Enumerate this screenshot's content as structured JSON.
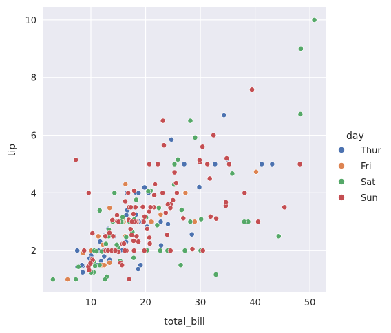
{
  "chart_data": {
    "type": "scatter",
    "xlabel": "total_bill",
    "ylabel": "tip",
    "xlim": [
      1.2,
      53.0
    ],
    "ylim": [
      0.55,
      10.45
    ],
    "xticks": [
      10,
      20,
      30,
      40,
      50
    ],
    "yticks": [
      2,
      4,
      6,
      8,
      10
    ],
    "grid": true,
    "legend": {
      "title": "day",
      "position": "right"
    },
    "series": [
      {
        "name": "Thur",
        "color": "#4c72b0",
        "points": [
          [
            27.2,
            4.0
          ],
          [
            22.76,
            3.0
          ],
          [
            17.29,
            2.71
          ],
          [
            19.44,
            3.0
          ],
          [
            16.66,
            3.4
          ],
          [
            10.07,
            1.83
          ],
          [
            32.68,
            5.0
          ],
          [
            15.98,
            2.03
          ],
          [
            34.83,
            5.17
          ],
          [
            13.03,
            2.0
          ],
          [
            18.28,
            4.0
          ],
          [
            24.71,
            5.85
          ],
          [
            21.16,
            3.0
          ],
          [
            28.97,
            3.0
          ],
          [
            22.49,
            3.5
          ],
          [
            5.75,
            1.0
          ],
          [
            16.32,
            4.3
          ],
          [
            22.75,
            3.25
          ],
          [
            40.17,
            4.73
          ],
          [
            27.28,
            4.0
          ],
          [
            12.03,
            1.5
          ],
          [
            21.01,
            3.0
          ],
          [
            12.46,
            1.5
          ],
          [
            11.35,
            2.5
          ],
          [
            15.38,
            3.0
          ],
          [
            44.3,
            2.5
          ],
          [
            22.42,
            3.48
          ],
          [
            20.92,
            4.08
          ],
          [
            15.36,
            1.64
          ],
          [
            20.49,
            4.06
          ],
          [
            25.21,
            4.29
          ],
          [
            18.24,
            3.76
          ],
          [
            14.31,
            4.0
          ],
          [
            14.0,
            3.0
          ],
          [
            7.25,
            1.0
          ],
          [
            38.07,
            4.0
          ],
          [
            23.95,
            2.55
          ],
          [
            25.71,
            4.0
          ],
          [
            17.31,
            3.5
          ],
          [
            29.93,
            5.07
          ],
          [
            10.65,
            1.5
          ],
          [
            12.43,
            1.8
          ],
          [
            24.08,
            2.92
          ],
          [
            11.69,
            2.31
          ],
          [
            13.42,
            1.68
          ],
          [
            14.26,
            2.5
          ],
          [
            15.95,
            2.0
          ],
          [
            12.48,
            2.52
          ],
          [
            29.8,
            4.2
          ],
          [
            8.52,
            1.48
          ],
          [
            14.52,
            2.0
          ],
          [
            11.38,
            2.0
          ],
          [
            22.82,
            2.18
          ],
          [
            19.08,
            1.5
          ],
          [
            20.27,
            2.83
          ],
          [
            11.17,
            1.5
          ],
          [
            12.26,
            2.0
          ],
          [
            18.26,
            3.25
          ],
          [
            8.51,
            1.25
          ],
          [
            10.33,
            2.0
          ],
          [
            14.15,
            2.0
          ],
          [
            16.0,
            2.0
          ],
          [
            13.16,
            2.75
          ],
          [
            17.47,
            3.5
          ],
          [
            34.3,
            6.7
          ],
          [
            41.19,
            5.0
          ],
          [
            27.05,
            5.0
          ],
          [
            16.43,
            2.3
          ],
          [
            8.35,
            1.5
          ],
          [
            18.64,
            1.36
          ],
          [
            11.87,
            1.63
          ],
          [
            9.78,
            1.73
          ],
          [
            7.51,
            2.0
          ],
          [
            19.81,
            4.19
          ],
          [
            28.44,
            2.56
          ],
          [
            15.48,
            2.02
          ],
          [
            16.58,
            4.0
          ],
          [
            7.56,
            1.44
          ],
          [
            10.34,
            2.0
          ],
          [
            43.11,
            5.0
          ],
          [
            13.0,
            2.0
          ],
          [
            13.51,
            2.0
          ],
          [
            18.71,
            4.0
          ],
          [
            12.74,
            2.01
          ],
          [
            13.0,
            2.0
          ],
          [
            16.4,
            2.5
          ],
          [
            20.53,
            4.0
          ],
          [
            16.47,
            3.23
          ],
          [
            18.78,
            3.0
          ],
          [
            10.09,
            2.0
          ]
        ]
      },
      {
        "name": "Fri",
        "color": "#dd8452",
        "points": [
          [
            28.97,
            3.0
          ],
          [
            22.49,
            3.5
          ],
          [
            5.75,
            1.0
          ],
          [
            16.32,
            4.3
          ],
          [
            22.75,
            3.25
          ],
          [
            40.17,
            4.73
          ],
          [
            27.28,
            4.0
          ],
          [
            12.03,
            1.5
          ],
          [
            21.01,
            3.0
          ],
          [
            12.46,
            1.5
          ],
          [
            11.35,
            2.5
          ],
          [
            15.38,
            3.0
          ],
          [
            12.16,
            2.2
          ],
          [
            13.42,
            3.48
          ],
          [
            8.58,
            1.92
          ],
          [
            15.98,
            3.0
          ],
          [
            13.42,
            1.58
          ],
          [
            16.27,
            2.5
          ],
          [
            10.09,
            2.0
          ]
        ]
      },
      {
        "name": "Sat",
        "color": "#55a868",
        "points": [
          [
            20.65,
            3.35
          ],
          [
            17.92,
            4.08
          ],
          [
            20.29,
            2.75
          ],
          [
            15.77,
            2.23
          ],
          [
            39.42,
            7.58
          ],
          [
            19.82,
            3.18
          ],
          [
            17.81,
            2.34
          ],
          [
            13.37,
            2.0
          ],
          [
            12.69,
            2.0
          ],
          [
            21.7,
            4.3
          ],
          [
            19.65,
            3.0
          ],
          [
            9.55,
            1.45
          ],
          [
            18.35,
            2.5
          ],
          [
            15.06,
            3.0
          ],
          [
            20.69,
            2.45
          ],
          [
            17.78,
            3.27
          ],
          [
            24.06,
            3.6
          ],
          [
            16.31,
            2.0
          ],
          [
            16.93,
            3.07
          ],
          [
            18.69,
            2.31
          ],
          [
            31.27,
            5.0
          ],
          [
            16.04,
            2.24
          ],
          [
            26.41,
            1.5
          ],
          [
            48.27,
            6.73
          ],
          [
            17.59,
            2.64
          ],
          [
            20.08,
            3.15
          ],
          [
            16.45,
            2.47
          ],
          [
            3.07,
            1.0
          ],
          [
            20.23,
            2.01
          ],
          [
            15.01,
            2.09
          ],
          [
            12.02,
            1.97
          ],
          [
            17.07,
            3.0
          ],
          [
            26.86,
            3.14
          ],
          [
            25.28,
            5.0
          ],
          [
            14.73,
            2.2
          ],
          [
            10.51,
            1.25
          ],
          [
            17.92,
            3.08
          ],
          [
            44.3,
            2.5
          ],
          [
            22.42,
            3.48
          ],
          [
            20.92,
            4.08
          ],
          [
            15.36,
            1.64
          ],
          [
            20.49,
            4.06
          ],
          [
            25.21,
            4.29
          ],
          [
            18.24,
            3.76
          ],
          [
            14.31,
            4.0
          ],
          [
            14.0,
            3.0
          ],
          [
            7.25,
            1.0
          ],
          [
            10.59,
            1.61
          ],
          [
            10.63,
            2.0
          ],
          [
            50.81,
            10.0
          ],
          [
            15.81,
            3.16
          ],
          [
            26.59,
            3.41
          ],
          [
            38.73,
            3.0
          ],
          [
            24.27,
            2.03
          ],
          [
            12.76,
            2.23
          ],
          [
            30.06,
            2.0
          ],
          [
            25.89,
            5.16
          ],
          [
            48.33,
            9.0
          ],
          [
            13.27,
            2.5
          ],
          [
            28.17,
            6.5
          ],
          [
            12.9,
            1.1
          ],
          [
            28.15,
            3.0
          ],
          [
            11.59,
            1.5
          ],
          [
            7.74,
            1.44
          ],
          [
            30.14,
            3.09
          ],
          [
            13.81,
            2.0
          ],
          [
            11.02,
            1.98
          ],
          [
            18.29,
            3.76
          ],
          [
            17.59,
            2.64
          ],
          [
            22.12,
            2.88
          ],
          [
            24.01,
            2.0
          ],
          [
            15.69,
            3.0
          ],
          [
            11.61,
            3.39
          ],
          [
            10.77,
            1.47
          ],
          [
            15.53,
            3.0
          ],
          [
            10.07,
            1.25
          ],
          [
            12.6,
            1.0
          ],
          [
            32.83,
            1.17
          ],
          [
            35.83,
            4.67
          ],
          [
            29.03,
            5.92
          ],
          [
            27.18,
            2.0
          ],
          [
            22.67,
            2.0
          ],
          [
            17.82,
            1.75
          ],
          [
            13.28,
            2.72
          ],
          [
            24.52,
            3.48
          ],
          [
            20.76,
            2.24
          ],
          [
            31.71,
            4.5
          ],
          [
            10.29,
            2.6
          ],
          [
            34.81,
            5.2
          ],
          [
            9.94,
            1.56
          ],
          [
            25.56,
            4.34
          ],
          [
            19.49,
            3.51
          ],
          [
            38.01,
            3.0
          ]
        ]
      },
      {
        "name": "Sun",
        "color": "#c44e52",
        "points": [
          [
            16.99,
            1.01
          ],
          [
            10.34,
            1.66
          ],
          [
            21.01,
            3.5
          ],
          [
            23.68,
            3.31
          ],
          [
            24.59,
            3.61
          ],
          [
            25.29,
            4.71
          ],
          [
            8.77,
            2.0
          ],
          [
            26.88,
            3.12
          ],
          [
            15.04,
            1.96
          ],
          [
            14.78,
            3.23
          ],
          [
            10.27,
            1.71
          ],
          [
            35.26,
            5.0
          ],
          [
            15.42,
            1.57
          ],
          [
            18.43,
            3.0
          ],
          [
            14.83,
            3.02
          ],
          [
            21.58,
            3.92
          ],
          [
            10.33,
            1.67
          ],
          [
            16.29,
            3.71
          ],
          [
            16.97,
            3.5
          ],
          [
            20.65,
            3.35
          ],
          [
            17.92,
            4.08
          ],
          [
            20.29,
            2.75
          ],
          [
            15.77,
            2.23
          ],
          [
            39.42,
            7.58
          ],
          [
            19.82,
            3.18
          ],
          [
            17.81,
            2.34
          ],
          [
            13.37,
            2.0
          ],
          [
            12.69,
            2.0
          ],
          [
            21.7,
            4.3
          ],
          [
            19.65,
            3.0
          ],
          [
            9.55,
            1.45
          ],
          [
            18.35,
            2.5
          ],
          [
            15.06,
            3.0
          ],
          [
            20.69,
            2.45
          ],
          [
            17.78,
            3.27
          ],
          [
            24.06,
            3.6
          ],
          [
            16.31,
            2.0
          ],
          [
            16.93,
            3.07
          ],
          [
            18.69,
            2.31
          ],
          [
            31.27,
            5.0
          ],
          [
            16.04,
            2.24
          ],
          [
            17.46,
            2.54
          ],
          [
            13.94,
            3.06
          ],
          [
            9.68,
            1.32
          ],
          [
            30.4,
            5.6
          ],
          [
            18.29,
            3.0
          ],
          [
            22.23,
            5.0
          ],
          [
            32.4,
            6.0
          ],
          [
            28.55,
            2.05
          ],
          [
            18.04,
            3.0
          ],
          [
            12.54,
            2.5
          ],
          [
            10.29,
            2.6
          ],
          [
            34.81,
            5.2
          ],
          [
            9.94,
            1.56
          ],
          [
            25.56,
            4.34
          ],
          [
            19.49,
            3.51
          ],
          [
            38.07,
            4.0
          ],
          [
            23.95,
            2.55
          ],
          [
            25.71,
            4.0
          ],
          [
            17.31,
            3.5
          ],
          [
            29.93,
            5.07
          ],
          [
            14.07,
            2.5
          ],
          [
            13.13,
            2.0
          ],
          [
            17.26,
            2.74
          ],
          [
            24.55,
            2.0
          ],
          [
            19.77,
            2.0
          ],
          [
            29.85,
            5.14
          ],
          [
            48.17,
            5.0
          ],
          [
            25.0,
            3.75
          ],
          [
            13.39,
            2.61
          ],
          [
            16.49,
            2.0
          ],
          [
            21.5,
            3.5
          ],
          [
            12.66,
            2.5
          ],
          [
            16.21,
            2.0
          ],
          [
            13.81,
            2.0
          ],
          [
            17.51,
            3.0
          ],
          [
            24.52,
            3.48
          ],
          [
            20.76,
            2.24
          ],
          [
            31.71,
            4.5
          ],
          [
            7.25,
            5.15
          ],
          [
            31.85,
            3.18
          ],
          [
            16.82,
            4.0
          ],
          [
            32.9,
            3.11
          ],
          [
            17.89,
            2.0
          ],
          [
            14.48,
            2.0
          ],
          [
            9.6,
            4.0
          ],
          [
            34.63,
            3.55
          ],
          [
            34.65,
            3.68
          ],
          [
            23.33,
            5.65
          ],
          [
            45.35,
            3.5
          ],
          [
            23.17,
            6.5
          ],
          [
            40.55,
            3.0
          ],
          [
            20.69,
            5.0
          ],
          [
            20.9,
            3.5
          ],
          [
            30.46,
            2.0
          ],
          [
            18.15,
            3.5
          ],
          [
            23.1,
            4.0
          ],
          [
            15.69,
            1.5
          ]
        ]
      }
    ]
  }
}
